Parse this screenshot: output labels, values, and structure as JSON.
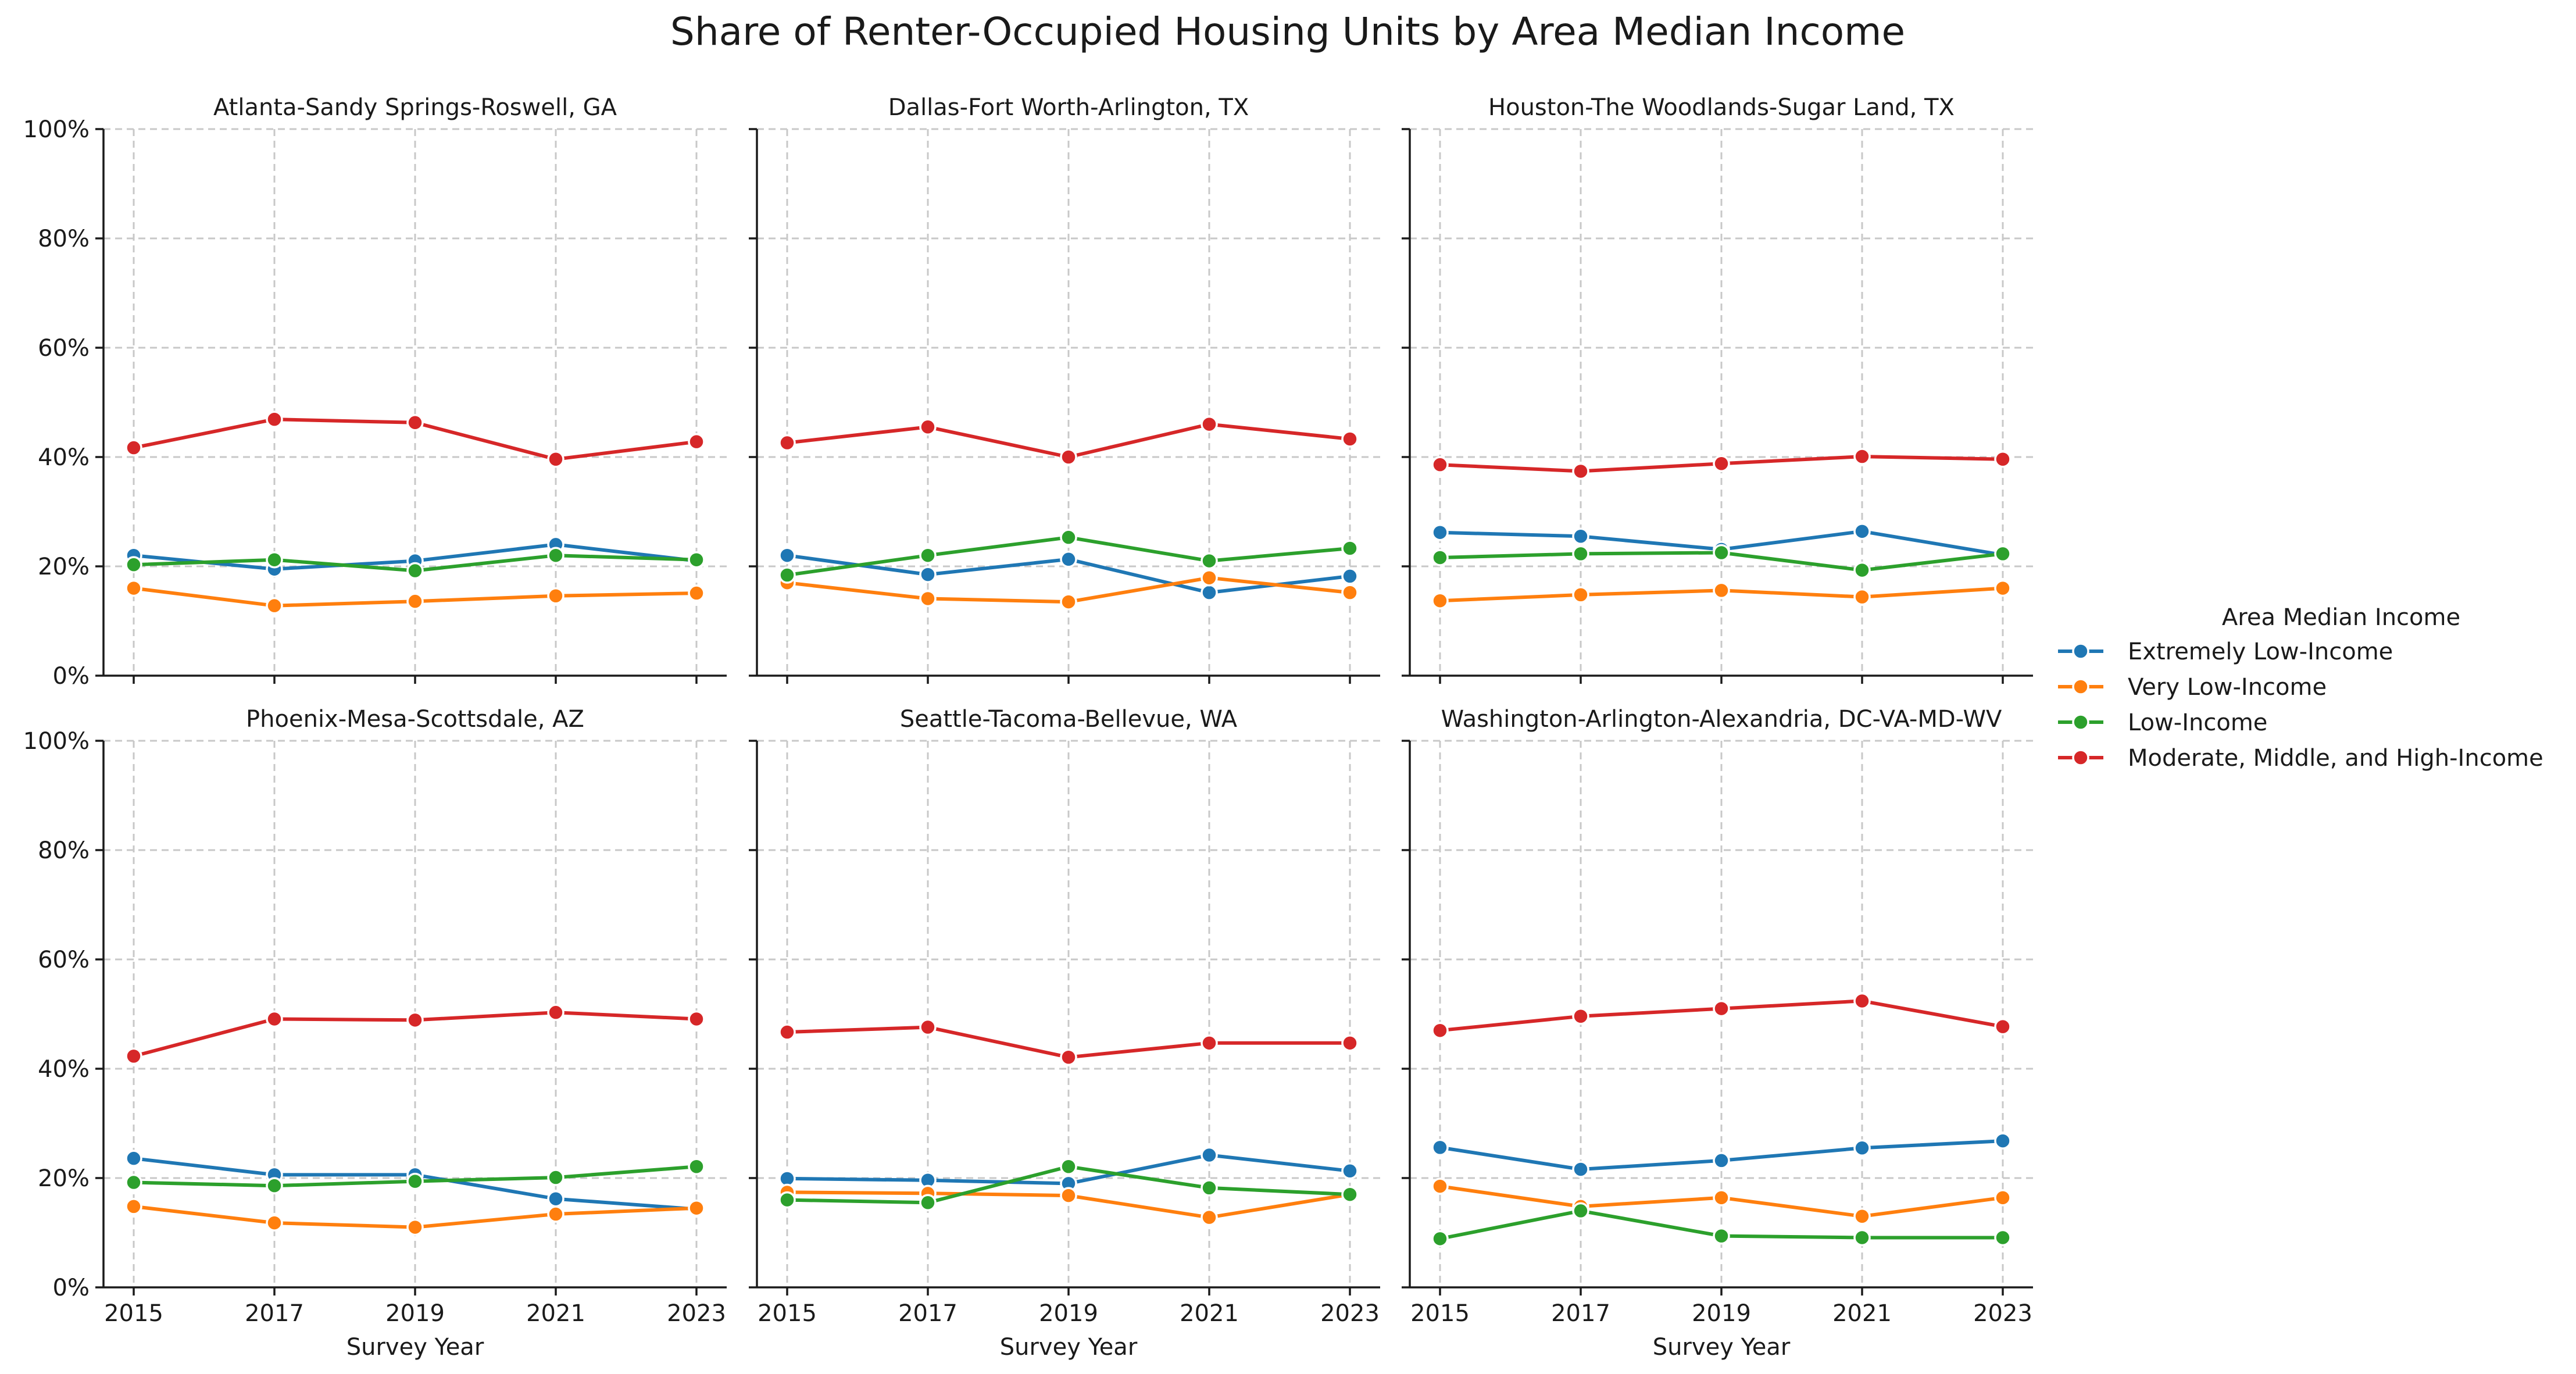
{
  "title": "Share of Renter-Occupied Housing Units by Area Median Income",
  "chart_data": {
    "type": "line",
    "title": "Share of Renter-Occupied Housing Units by Area Median Income",
    "xlabel": "Survey Year",
    "ylabel": "",
    "x": [
      2015,
      2017,
      2019,
      2021,
      2023
    ],
    "x_ticks": [
      "2015",
      "2017",
      "2019",
      "2021",
      "2023"
    ],
    "ylim": [
      0,
      100
    ],
    "y_ticks": [
      "0%",
      "20%",
      "40%",
      "60%",
      "80%",
      "100%"
    ],
    "grid": true,
    "legend": {
      "title": "Area Median Income",
      "placement": "right",
      "entries": [
        {
          "label": "Extremely Low-Income",
          "color": "#1f77b4"
        },
        {
          "label": "Very Low-Income",
          "color": "#ff7f0e"
        },
        {
          "label": "Low-Income",
          "color": "#2ca02c"
        },
        {
          "label": "Moderate, Middle, and High-Income",
          "color": "#d62728"
        }
      ]
    },
    "panels": [
      {
        "title": "Atlanta-Sandy Springs-Roswell, GA",
        "series": [
          {
            "name": "Extremely Low-Income",
            "values": [
              22.0,
              19.5,
              21.0,
              24.0,
              21.0
            ]
          },
          {
            "name": "Very Low-Income",
            "values": [
              16.0,
              12.8,
              13.6,
              14.6,
              15.1
            ]
          },
          {
            "name": "Low-Income",
            "values": [
              20.3,
              21.2,
              19.2,
              22.0,
              21.2
            ]
          },
          {
            "name": "Moderate, Middle, and High-Income",
            "values": [
              41.7,
              46.9,
              46.3,
              39.6,
              42.8
            ]
          }
        ]
      },
      {
        "title": "Dallas-Fort Worth-Arlington, TX",
        "series": [
          {
            "name": "Extremely Low-Income",
            "values": [
              22.0,
              18.5,
              21.3,
              15.2,
              18.2
            ]
          },
          {
            "name": "Very Low-Income",
            "values": [
              17.0,
              14.1,
              13.5,
              17.9,
              15.2
            ]
          },
          {
            "name": "Low-Income",
            "values": [
              18.4,
              22.0,
              25.3,
              21.0,
              23.3
            ]
          },
          {
            "name": "Moderate, Middle, and High-Income",
            "values": [
              42.6,
              45.5,
              40.0,
              46.0,
              43.3
            ]
          }
        ]
      },
      {
        "title": "Houston-The Woodlands-Sugar Land, TX",
        "series": [
          {
            "name": "Extremely Low-Income",
            "values": [
              26.2,
              25.5,
              23.1,
              26.4,
              22.1
            ]
          },
          {
            "name": "Very Low-Income",
            "values": [
              13.7,
              14.8,
              15.6,
              14.4,
              16.0
            ]
          },
          {
            "name": "Low-Income",
            "values": [
              21.6,
              22.3,
              22.5,
              19.3,
              22.3
            ]
          },
          {
            "name": "Moderate, Middle, and High-Income",
            "values": [
              38.6,
              37.4,
              38.8,
              40.1,
              39.6
            ]
          }
        ]
      },
      {
        "title": "Phoenix-Mesa-Scottsdale, AZ",
        "series": [
          {
            "name": "Extremely Low-Income",
            "values": [
              23.6,
              20.6,
              20.6,
              16.2,
              14.3
            ]
          },
          {
            "name": "Very Low-Income",
            "values": [
              14.8,
              11.8,
              11.0,
              13.4,
              14.5
            ]
          },
          {
            "name": "Low-Income",
            "values": [
              19.2,
              18.6,
              19.4,
              20.1,
              22.1
            ]
          },
          {
            "name": "Moderate, Middle, and High-Income",
            "values": [
              42.3,
              49.1,
              48.9,
              50.3,
              49.1
            ]
          }
        ]
      },
      {
        "title": "Seattle-Tacoma-Bellevue, WA",
        "series": [
          {
            "name": "Extremely Low-Income",
            "values": [
              19.9,
              19.6,
              19.0,
              24.2,
              21.3
            ]
          },
          {
            "name": "Very Low-Income",
            "values": [
              17.4,
              17.2,
              16.8,
              12.8,
              17.0
            ]
          },
          {
            "name": "Low-Income",
            "values": [
              16.0,
              15.5,
              22.1,
              18.2,
              17.0
            ]
          },
          {
            "name": "Moderate, Middle, and High-Income",
            "values": [
              46.7,
              47.6,
              42.1,
              44.7,
              44.7
            ]
          }
        ]
      },
      {
        "title": "Washington-Arlington-Alexandria, DC-VA-MD-WV",
        "series": [
          {
            "name": "Extremely Low-Income",
            "values": [
              25.6,
              21.6,
              23.2,
              25.5,
              26.8
            ]
          },
          {
            "name": "Very Low-Income",
            "values": [
              18.5,
              14.8,
              16.4,
              13.0,
              16.4
            ]
          },
          {
            "name": "Low-Income",
            "values": [
              8.9,
              14.0,
              9.4,
              9.1,
              9.1
            ]
          },
          {
            "name": "Moderate, Middle, and High-Income",
            "values": [
              47.0,
              49.6,
              51.0,
              52.4,
              47.7
            ]
          }
        ]
      }
    ]
  }
}
